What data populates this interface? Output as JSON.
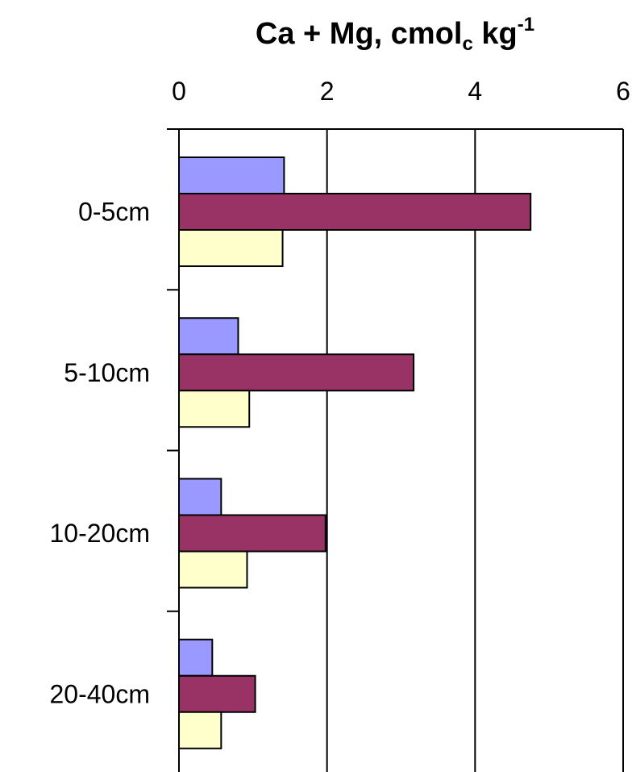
{
  "chart_data": {
    "type": "bar",
    "orientation": "horizontal",
    "title": {
      "text": "Ca + Mg, cmol",
      "subscript": "c",
      "unit": " kg",
      "superscript": "-1"
    },
    "xlabel": "",
    "ylabel": "",
    "x_axis_position": "top",
    "xlim": [
      0,
      6
    ],
    "x_ticks": [
      "0",
      "2",
      "4",
      "6"
    ],
    "grid": "vertical major gridlines",
    "legend": "none",
    "categories": [
      "0-5cm",
      "5-10cm",
      "10-20cm",
      "20-40cm"
    ],
    "series": [
      {
        "color": "#9999ff",
        "values": [
          1.42,
          0.8,
          0.57,
          0.45
        ]
      },
      {
        "color": "#993366",
        "values": [
          4.75,
          3.17,
          1.98,
          1.03
        ]
      },
      {
        "color": "#ffffcc",
        "values": [
          1.4,
          0.95,
          0.92,
          0.57
        ]
      }
    ]
  }
}
